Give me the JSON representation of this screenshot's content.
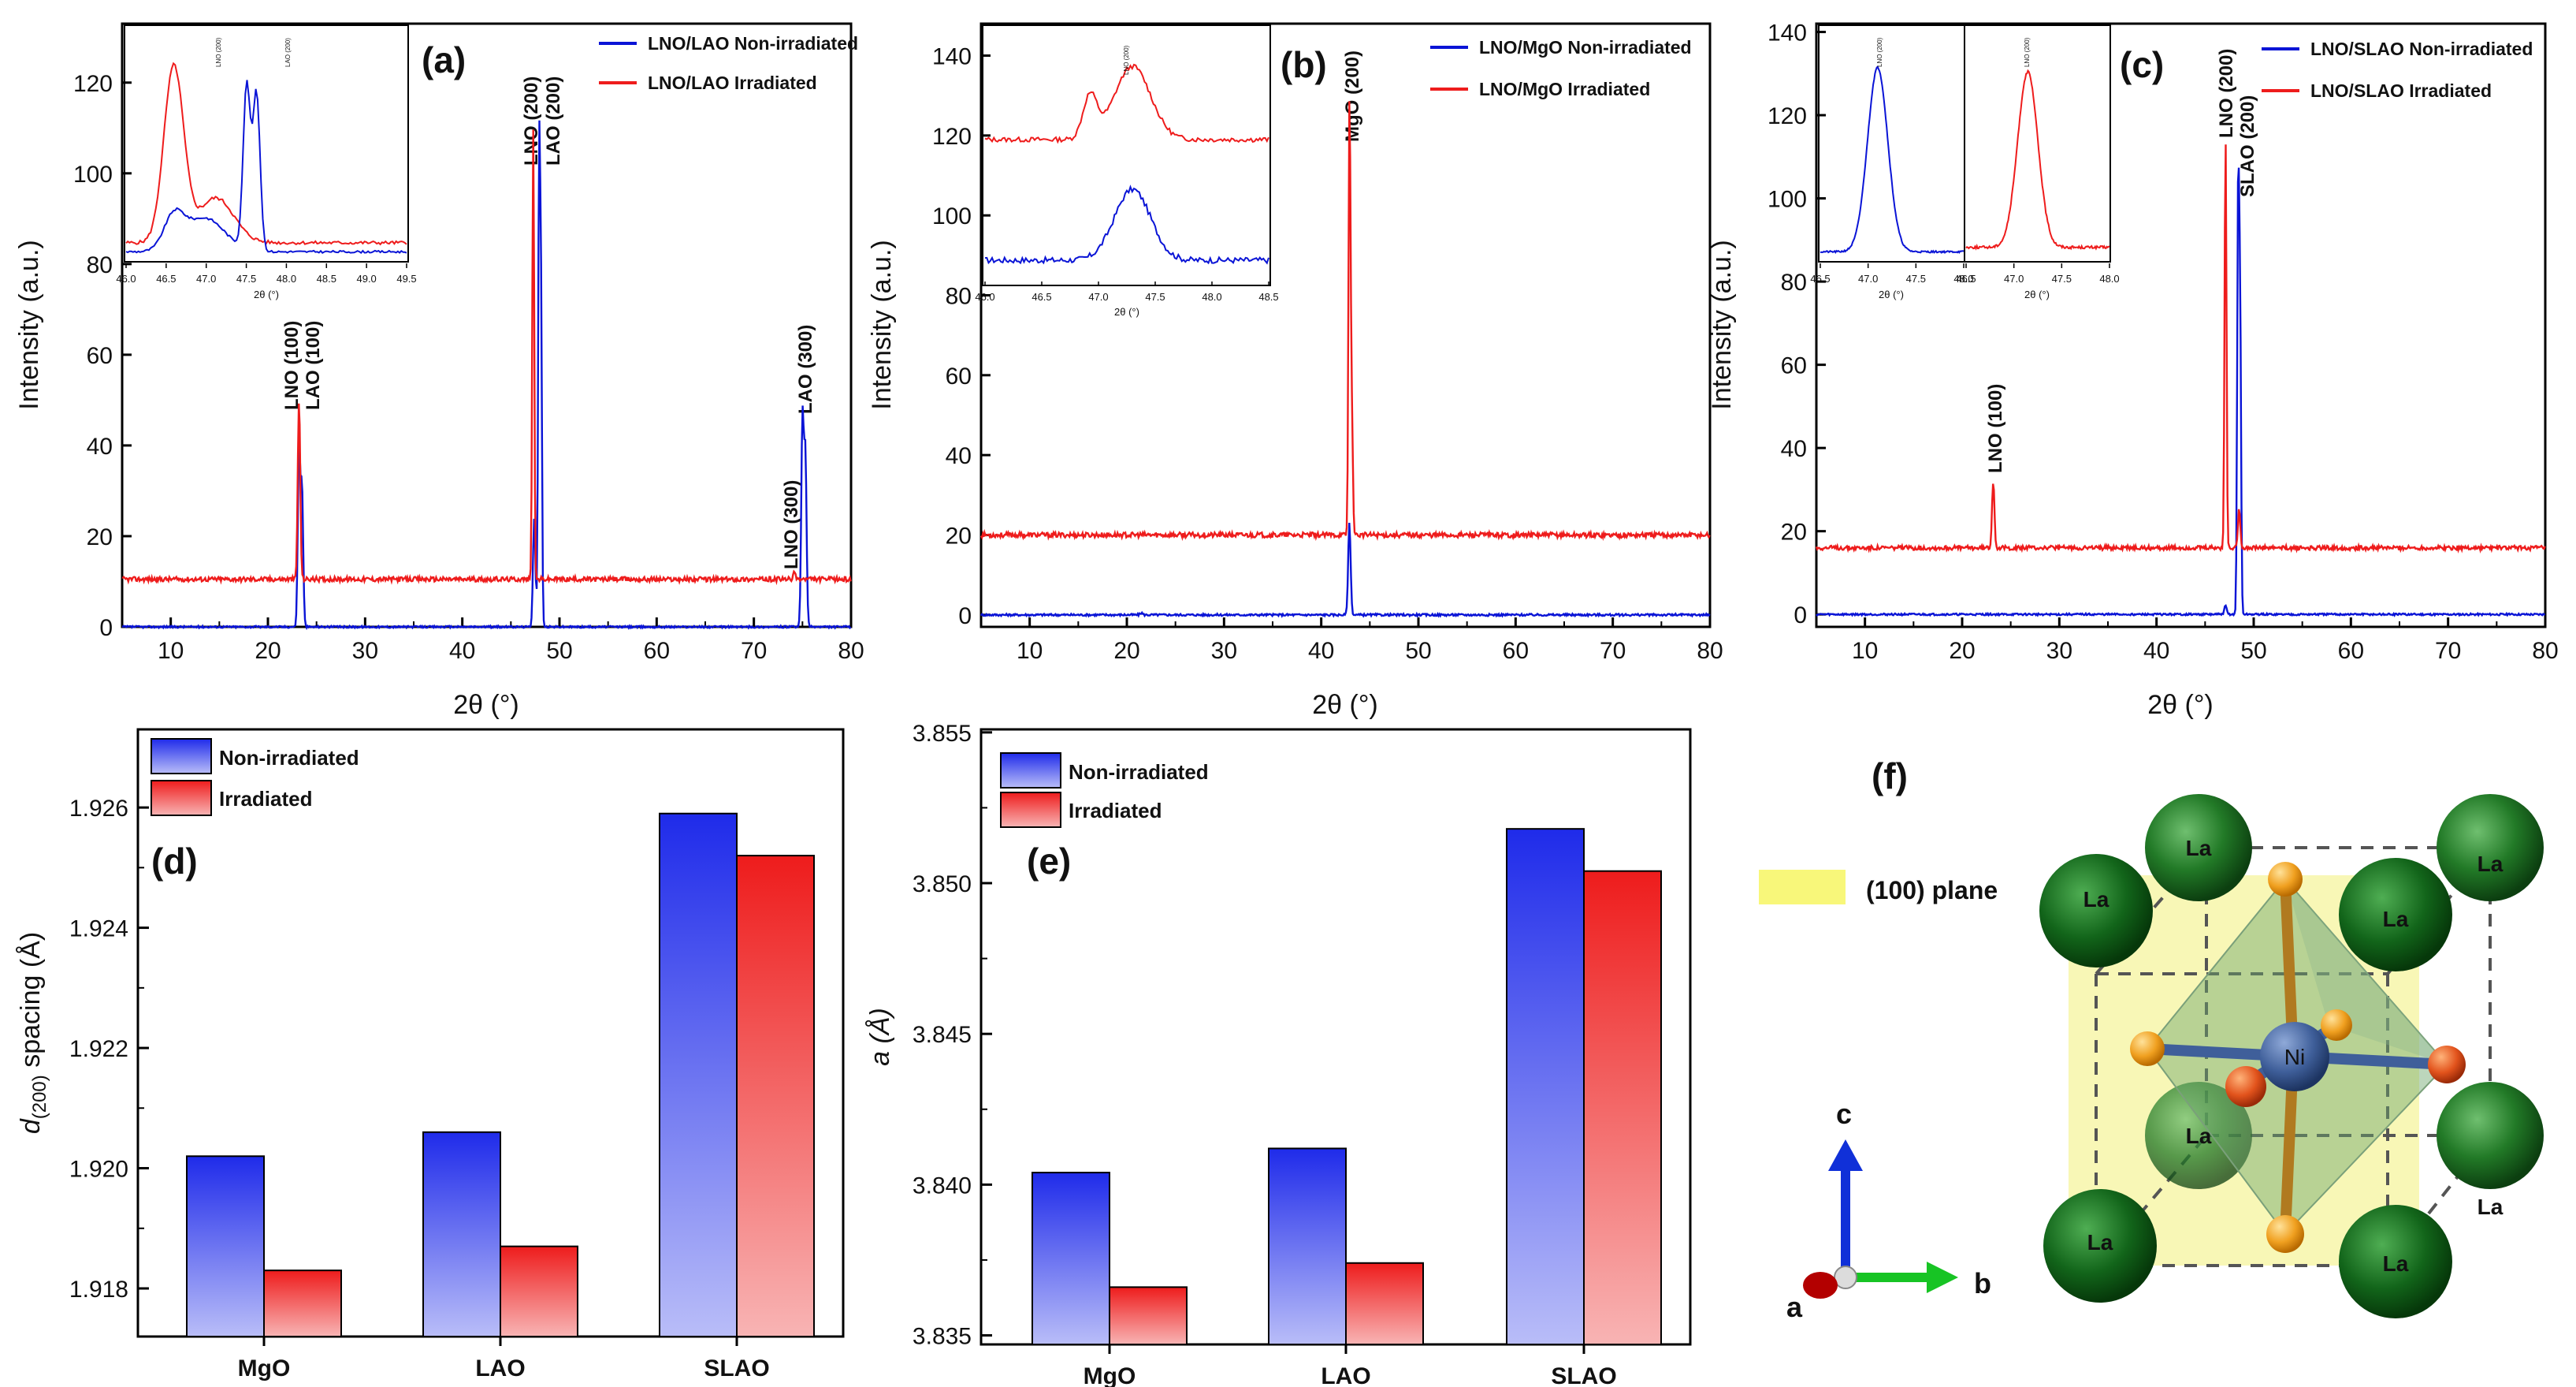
{
  "panels": {
    "a": {
      "letter": "(a)",
      "ylabel": "Intensity (a.u.)",
      "xlabel": "2θ (°)",
      "legend": [
        "LNO/LAO Non-irradiated",
        "LNO/LAO Irradiated"
      ],
      "peaks": [
        "LNO (100)",
        "LAO (100)",
        "LNO (200)",
        "LAO (200)",
        "LNO (300)",
        "LAO (300)"
      ],
      "xticks": [
        "10",
        "20",
        "30",
        "40",
        "50",
        "60",
        "70",
        "80"
      ],
      "yticks": [
        "0",
        "20",
        "40",
        "60",
        "80",
        "100",
        "120"
      ],
      "inset": {
        "xlabel": "2θ (°)",
        "xticks": [
          "46.0",
          "46.5",
          "47.0",
          "47.5",
          "48.0",
          "48.5",
          "49.0",
          "49.5"
        ],
        "peaks": [
          "LNO (200)",
          "LAO (200)"
        ]
      }
    },
    "b": {
      "letter": "(b)",
      "ylabel": "Intensity (a.u.)",
      "xlabel": "2θ (°)",
      "legend": [
        "LNO/MgO Non-irradiated",
        "LNO/MgO Irradiated"
      ],
      "peaks": [
        "MgO (200)"
      ],
      "xticks": [
        "10",
        "20",
        "30",
        "40",
        "50",
        "60",
        "70",
        "80"
      ],
      "yticks": [
        "0",
        "20",
        "40",
        "60",
        "80",
        "100",
        "120",
        "140"
      ],
      "inset": {
        "xlabel": "2θ (°)",
        "xticks": [
          "46.0",
          "46.5",
          "47.0",
          "47.5",
          "48.0",
          "48.5"
        ],
        "peaks": [
          "LNO (200)"
        ]
      }
    },
    "c": {
      "letter": "(c)",
      "ylabel": "Intensity (a.u.)",
      "xlabel": "2θ (°)",
      "legend": [
        "LNO/SLAO Non-irradiated",
        "LNO/SLAO Irradiated"
      ],
      "peaks": [
        "LNO (100)",
        "LNO (200)",
        "SLAO (200)"
      ],
      "xticks": [
        "10",
        "20",
        "30",
        "40",
        "50",
        "60",
        "70",
        "80"
      ],
      "yticks": [
        "0",
        "20",
        "40",
        "60",
        "80",
        "100",
        "120",
        "140"
      ],
      "inset": {
        "xlabel1": "2θ (°)",
        "xlabel2": "2θ (°)",
        "xticks1": [
          "46.5",
          "47.0",
          "47.5",
          "48.0"
        ],
        "xticks2": [
          "46.5",
          "47.0",
          "47.5",
          "48.0"
        ],
        "peaks": [
          "LNO (200)",
          "LNO (200)"
        ]
      }
    },
    "d": {
      "letter": "(d)",
      "ylabel_main": "d",
      "ylabel_sub": "(200)",
      "ylabel_rest": " spacing (Å)",
      "legend": [
        "Non-irradiated",
        "Irradiated"
      ],
      "yticks": [
        "1.918",
        "1.920",
        "1.922",
        "1.924",
        "1.926"
      ]
    },
    "e": {
      "letter": "(e)",
      "ylabel": "a (Å)",
      "legend": [
        "Non-irradiated",
        "Irradiated"
      ],
      "yticks": [
        "3.835",
        "3.840",
        "3.845",
        "3.850",
        "3.855"
      ]
    },
    "f": {
      "letter": "(f)",
      "plane_label": "(100) plane",
      "atom_la": "La",
      "atom_ni": "Ni",
      "axis_a": "a",
      "axis_b": "b",
      "axis_c": "c"
    }
  },
  "colors": {
    "non_irradiated": "#0a14d6",
    "irradiated": "#ee1c1c"
  },
  "chart_data": [
    {
      "type": "line",
      "panel": "a",
      "xlim": [
        5,
        80
      ],
      "ylim": [
        0,
        133
      ],
      "xlabel": "2θ (°)",
      "ylabel": "Intensity (a.u.)",
      "series": [
        {
          "name": "LNO/LAO Non-irradiated",
          "baseline": 0,
          "peaks": [
            [
              23.2,
              38
            ],
            [
              23.5,
              30
            ],
            [
              47.4,
              24
            ],
            [
              47.9,
              100
            ],
            [
              48.1,
              70
            ],
            [
              75.0,
              46
            ],
            [
              75.3,
              38
            ]
          ]
        },
        {
          "name": "LNO/LAO Irradiated",
          "baseline": 10.5,
          "peaks": [
            [
              23.2,
              50
            ],
            [
              47.3,
              110
            ],
            [
              74.2,
              12
            ]
          ]
        }
      ]
    },
    {
      "type": "line",
      "panel": "b",
      "xlim": [
        5,
        80
      ],
      "ylim": [
        -3,
        148
      ],
      "xlabel": "2θ (°)",
      "ylabel": "Intensity (a.u.)",
      "series": [
        {
          "name": "LNO/MgO Non-irradiated",
          "baseline": 0,
          "peaks": [
            [
              21.5,
              0.5
            ],
            [
              42.9,
              23
            ]
          ]
        },
        {
          "name": "LNO/MgO Irradiated",
          "baseline": 20,
          "peaks": [
            [
              42.9,
              120
            ],
            [
              43.1,
              56
            ]
          ]
        }
      ]
    },
    {
      "type": "line",
      "panel": "c",
      "xlim": [
        5,
        80
      ],
      "ylim": [
        -3,
        142
      ],
      "xlabel": "2θ (°)",
      "ylabel": "Intensity (a.u.)",
      "series": [
        {
          "name": "LNO/SLAO Non-irradiated",
          "baseline": 0,
          "peaks": [
            [
              47.1,
              2
            ],
            [
              48.4,
              100
            ],
            [
              48.6,
              70
            ]
          ]
        },
        {
          "name": "LNO/SLAO Irradiated",
          "baseline": 16,
          "peaks": [
            [
              23.2,
              32
            ],
            [
              47.1,
              115
            ],
            [
              48.5,
              25
            ]
          ]
        }
      ]
    },
    {
      "type": "bar",
      "panel": "d",
      "categories": [
        "MgO",
        "LAO",
        "SLAO"
      ],
      "ylim": [
        1.9172,
        1.9273
      ],
      "ylabel": "d(200) spacing (Å)",
      "series": [
        {
          "name": "Non-irradiated",
          "values": [
            1.9202,
            1.9206,
            1.9259
          ]
        },
        {
          "name": "Irradiated",
          "values": [
            1.9183,
            1.9187,
            1.9252
          ]
        }
      ]
    },
    {
      "type": "bar",
      "panel": "e",
      "categories": [
        "MgO",
        "LAO",
        "SLAO"
      ],
      "ylim": [
        3.8347,
        3.8551
      ],
      "ylabel": "a (Å)",
      "series": [
        {
          "name": "Non-irradiated",
          "values": [
            3.8404,
            3.8412,
            3.8518
          ]
        },
        {
          "name": "Irradiated",
          "values": [
            3.8366,
            3.8374,
            3.8504
          ]
        }
      ]
    }
  ]
}
